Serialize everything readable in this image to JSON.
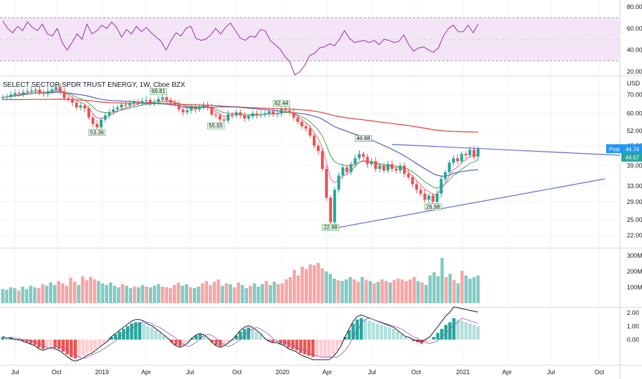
{
  "chart_data": [
    {
      "type": "line",
      "panel": "rsi",
      "y_ticks": [
        "80.00",
        "60.00",
        "40.00",
        "20.00"
      ],
      "ylim": [
        20,
        80
      ],
      "band": [
        30,
        70
      ],
      "midline": 50,
      "colors": {
        "line": "#9c27b0",
        "band": "#f3e5f5",
        "band_edge": "#9e9e9e"
      },
      "series": [
        {
          "values": [
            67,
            60,
            56,
            62,
            58,
            66,
            61,
            58,
            64,
            55,
            53,
            60,
            47,
            40,
            47,
            55,
            50,
            64,
            55,
            58,
            63,
            60,
            66,
            61,
            52,
            59,
            55,
            62,
            57,
            61,
            56,
            52,
            48,
            40,
            49,
            56,
            53,
            60,
            62,
            51,
            49,
            50,
            54,
            60,
            55,
            61,
            65,
            58,
            51,
            49,
            53,
            52,
            59,
            58,
            49,
            45,
            41,
            34,
            29,
            17,
            20,
            26,
            35,
            37,
            42,
            43,
            46,
            44,
            50,
            58,
            51,
            47,
            48,
            49,
            47,
            49,
            45,
            50,
            49,
            47,
            48,
            54,
            45,
            39,
            42,
            43,
            40,
            38,
            42,
            53,
            60,
            63,
            57,
            57,
            63,
            56,
            64
          ]
        }
      ]
    },
    {
      "type": "candlestick",
      "panel": "price",
      "title": "SELECT SECTOR SPDR TRUST ENERGY, 1W, Cboe BZX",
      "currency": "USD",
      "y_ticks": [
        "70.00",
        "60.00",
        "52.00",
        "46.00",
        "39.00",
        "33.00",
        "29.00",
        "25.00",
        "22.00"
      ],
      "ylim": [
        20.5,
        79
      ],
      "x_ticks": [
        "Jul",
        "Oct",
        "2019",
        "Apr",
        "Jul",
        "Oct",
        "2020",
        "Apr",
        "Jul",
        "Oct",
        "2021",
        "Apr",
        "Jul",
        "Oct"
      ],
      "colors": {
        "up": "#26a69a",
        "down": "#ef5350",
        "ema_short": "#f06292",
        "ema_mid": "#43a047",
        "ma_long": "#3f51b5",
        "ma_200": "#e53935",
        "trendline": "#5b6dd6"
      },
      "close": [
        68.5,
        69.0,
        70.0,
        71.0,
        70.5,
        71.5,
        72.0,
        72.5,
        73.0,
        71.0,
        70.5,
        72.0,
        73.0,
        74.5,
        72.0,
        68.0,
        67.5,
        65.5,
        63.0,
        64.0,
        62.5,
        58.0,
        55.0,
        53.5,
        57.0,
        59.0,
        60.5,
        62.0,
        63.0,
        64.5,
        64.0,
        65.0,
        66.0,
        65.5,
        66.5,
        67.0,
        65.0,
        66.0,
        67.5,
        68.5,
        67.0,
        65.5,
        64.5,
        62.0,
        60.5,
        61.5,
        63.0,
        62.0,
        63.5,
        64.5,
        63.0,
        59.5,
        59.0,
        57.0,
        56.5,
        59.5,
        59.0,
        60.5,
        59.0,
        57.5,
        58.5,
        60.0,
        59.0,
        59.5,
        60.0,
        61.0,
        59.5,
        60.0,
        62.0,
        61.5,
        60.5,
        58.0,
        56.0,
        54.0,
        53.0,
        50.0,
        46.0,
        44.0,
        38.0,
        30.0,
        24.5,
        32.0,
        36.0,
        38.5,
        37.0,
        39.5,
        41.5,
        43.0,
        42.0,
        39.5,
        40.5,
        38.0,
        39.0,
        37.5,
        39.5,
        38.0,
        37.5,
        39.0,
        36.5,
        35.5,
        33.5,
        32.0,
        31.0,
        29.5,
        30.5,
        29.0,
        31.0,
        35.0,
        37.0,
        40.0,
        41.5,
        40.5,
        43.0,
        42.5,
        44.5,
        42.0,
        44.74
      ]
    },
    {
      "type": "bar",
      "panel": "volume",
      "y_ticks": [
        "300M",
        "200M",
        "100M"
      ],
      "ylim": [
        0,
        330
      ],
      "series": [
        {
          "values": [
            90,
            85,
            100,
            95,
            80,
            105,
            90,
            110,
            100,
            95,
            120,
            110,
            130,
            115,
            140,
            125,
            110,
            160,
            135,
            115,
            170,
            145,
            165,
            150,
            140,
            125,
            115,
            130,
            110,
            100,
            120,
            110,
            95,
            105,
            100,
            115,
            105,
            100,
            110,
            120,
            105,
            100,
            95,
            115,
            130,
            110,
            120,
            100,
            95,
            105,
            125,
            140,
            115,
            135,
            150,
            110,
            125,
            120,
            100,
            130,
            115,
            95,
            110,
            125,
            105,
            120,
            140,
            115,
            135,
            120,
            125,
            150,
            165,
            210,
            175,
            230,
            215,
            245,
            240,
            255,
            220,
            200,
            185,
            155,
            145,
            140,
            150,
            165,
            150,
            135,
            165,
            145,
            140,
            125,
            135,
            150,
            140,
            130,
            145,
            155,
            150,
            140,
            150,
            165,
            140,
            130,
            115,
            175,
            195,
            170,
            285,
            165,
            185,
            145,
            125,
            205,
            175,
            155,
            165,
            175
          ]
        }
      ]
    },
    {
      "type": "bar",
      "panel": "macd",
      "y_ticks": [
        "2.00",
        "1.00",
        "0.00"
      ],
      "ylim": [
        -1.6,
        2.2
      ],
      "colors": {
        "hist_up": "#26a69a",
        "hist_up_light": "#b2dfdb",
        "hist_down": "#ef5350",
        "hist_down_light": "#ffcdd2",
        "macd": "#2962ff",
        "signal": "#ff6d00"
      },
      "series": [
        {
          "values": [
            0.2,
            0.1,
            0.1,
            0.0,
            0.0,
            -0.1,
            -0.2,
            -0.3,
            -0.4,
            -0.6,
            -0.7,
            -0.6,
            -0.5,
            -0.6,
            -0.7,
            -0.9,
            -1.1,
            -1.3,
            -1.4,
            -1.3,
            -1.2,
            -1.0,
            -0.9,
            -0.7,
            -0.5,
            -0.3,
            -0.1,
            0.2,
            0.4,
            0.6,
            0.8,
            1.0,
            1.2,
            1.3,
            1.3,
            1.2,
            1.0,
            0.9,
            0.7,
            0.5,
            0.3,
            0.1,
            -0.2,
            -0.4,
            -0.5,
            -0.4,
            -0.2,
            0.1,
            0.3,
            0.4,
            0.3,
            0.1,
            -0.2,
            -0.4,
            -0.5,
            -0.4,
            -0.2,
            0.0,
            0.3,
            0.6,
            0.8,
            0.9,
            0.8,
            0.6,
            0.4,
            0.1,
            -0.1,
            -0.2,
            -0.2,
            -0.3,
            -0.4,
            -0.6,
            -0.7,
            -0.8,
            -1.0,
            -1.1,
            -1.2,
            -1.3,
            -1.3,
            -1.3,
            -1.3,
            -1.3,
            -1.1,
            -0.8,
            -0.4,
            0.2,
            0.7,
            1.2,
            1.5,
            1.6,
            1.5,
            1.4,
            1.3,
            1.2,
            1.1,
            1.0,
            0.9,
            0.8,
            0.6,
            0.4,
            0.2,
            0.1,
            -0.1,
            -0.2,
            -0.3,
            -0.2,
            -0.1,
            0.2,
            0.5,
            0.8,
            1.1,
            1.3,
            1.6,
            1.5,
            1.4,
            1.3,
            1.2,
            1.1,
            1.0
          ]
        }
      ]
    }
  ],
  "labels": {
    "lows": [
      "53.36",
      "55.55",
      "22.88",
      "26.98"
    ],
    "highs": [
      "69.81",
      "62.44",
      "46.88"
    ],
    "post_tag": "Post",
    "post_value": "44.74",
    "last_value": "44.67"
  }
}
